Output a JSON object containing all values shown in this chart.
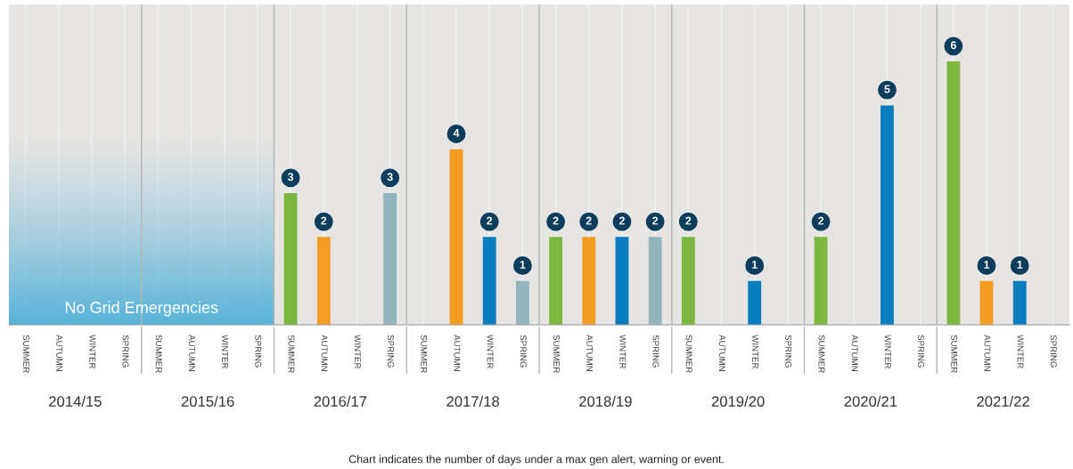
{
  "chart_data": {
    "type": "bar",
    "categories": [
      "SUMMER",
      "AUTUMN",
      "WINTER",
      "SPRING",
      "SUMMER",
      "AUTUMN",
      "WINTER",
      "SPRING",
      "SUMMER",
      "AUTUMN",
      "WINTER",
      "SPRING",
      "SUMMER",
      "AUTUMN",
      "WINTER",
      "SPRING",
      "SUMMER",
      "AUTUMN",
      "WINTER",
      "SPRING",
      "SUMMER",
      "AUTUMN",
      "WINTER",
      "SPRING",
      "SUMMER",
      "AUTUMN",
      "WINTER",
      "SPRING",
      "SUMMER",
      "AUTUMN",
      "WINTER",
      "SPRING"
    ],
    "values": [
      null,
      null,
      null,
      null,
      null,
      null,
      null,
      null,
      3,
      2,
      null,
      3,
      null,
      4,
      2,
      1,
      2,
      2,
      2,
      2,
      2,
      null,
      1,
      null,
      2,
      null,
      5,
      null,
      6,
      1,
      1,
      null
    ],
    "colors": [
      "#7cb840",
      "#f59c23",
      "#0a7dbe",
      "#92b4bc",
      "#7cb840",
      "#f59c23",
      "#0a7dbe",
      "#92b4bc",
      "#7cb840",
      "#f59c23",
      "#0a7dbe",
      "#92b4bc",
      "#7cb840",
      "#f59c23",
      "#0a7dbe",
      "#92b4bc",
      "#7cb840",
      "#f59c23",
      "#0a7dbe",
      "#92b4bc",
      "#7cb840",
      "#f59c23",
      "#0a7dbe",
      "#92b4bc",
      "#7cb840",
      "#f59c23",
      "#0a7dbe",
      "#92b4bc",
      "#7cb840",
      "#f59c23",
      "#0a7dbe",
      "#92b4bc"
    ],
    "data_labels": true,
    "ylim": [
      0,
      7.3
    ],
    "tick_labels": "x",
    "grid": "x",
    "annotations": [
      "2014/15",
      "2015/16",
      "2016/17",
      "2017/18",
      "2018/19",
      "2019/20",
      "2020/21",
      "2021/22",
      "No Grid Emergencies",
      "Chart indicates the number of days under a max gen alert, warning or event."
    ]
  }
}
